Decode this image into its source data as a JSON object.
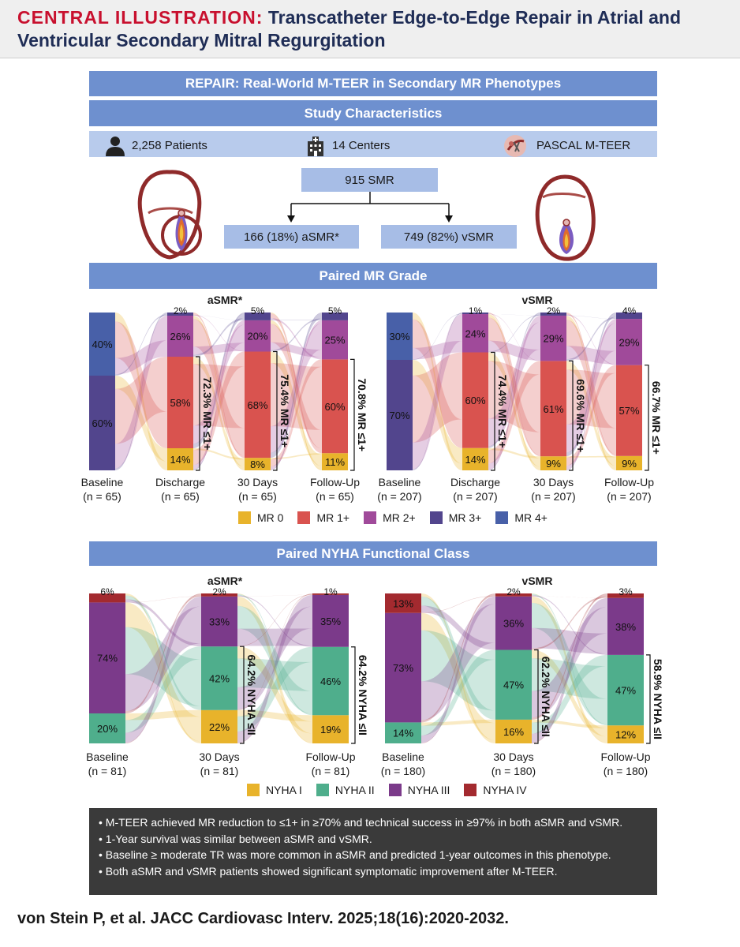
{
  "header": {
    "label": "CENTRAL ILLUSTRATION:",
    "title": "Transcatheter Edge-to-Edge Repair in Atrial and Ventricular Secondary Mitral Regurgitation"
  },
  "top_banner": "REPAIR: Real-World M-TEER in Secondary MR Phenotypes",
  "study_banner": "Study Characteristics",
  "stats": {
    "patients": "2,258 Patients",
    "centers": "14 Centers",
    "device": "PASCAL M-TEER"
  },
  "cohort": {
    "total": "915 SMR",
    "asmr": "166 (18%) aSMR*",
    "vsmr": "749 (82%) vSMR"
  },
  "mr_banner": "Paired MR Grade",
  "nyha_banner": "Paired NYHA Functional Class",
  "colors": {
    "mr0": "#e8b32b",
    "mr1": "#d9534f",
    "mr2": "#a04a9a",
    "mr3": "#52458d",
    "mr4": "#4860a8",
    "ny1": "#e8b32b",
    "ny2": "#4fae8c",
    "ny3": "#7b3a8a",
    "ny4": "#a32a2f"
  },
  "mr_legend": [
    "MR 0",
    "MR 1+",
    "MR 2+",
    "MR 3+",
    "MR 4+"
  ],
  "nyha_legend": [
    "NYHA I",
    "NYHA II",
    "NYHA III",
    "NYHA IV"
  ],
  "chart_data": [
    {
      "type": "sankey",
      "title": "aSMR*",
      "columns": [
        {
          "label": "Baseline",
          "n": "(n = 65)",
          "segments": [
            {
              "cat": "MR 3+",
              "pct": 60,
              "label": "60%"
            },
            {
              "cat": "MR 4+",
              "pct": 40,
              "label": "40%"
            }
          ]
        },
        {
          "label": "Discharge",
          "n": "(n = 65)",
          "segments": [
            {
              "cat": "MR 0",
              "pct": 14,
              "label": "14%"
            },
            {
              "cat": "MR 1+",
              "pct": 58,
              "label": "58%"
            },
            {
              "cat": "MR 2+",
              "pct": 26,
              "label": "26%"
            },
            {
              "cat": "MR 3+",
              "pct": 2,
              "label": "2%"
            }
          ],
          "bracket": "72.3% MR ≤1+"
        },
        {
          "label": "30 Days",
          "n": "(n = 65)",
          "segments": [
            {
              "cat": "MR 0",
              "pct": 8,
              "label": "8%"
            },
            {
              "cat": "MR 1+",
              "pct": 68,
              "label": "68%"
            },
            {
              "cat": "MR 2+",
              "pct": 20,
              "label": "20%"
            },
            {
              "cat": "MR 3+",
              "pct": 5,
              "label": "5%"
            }
          ],
          "bracket": "75.4% MR ≤1+"
        },
        {
          "label": "Follow-Up",
          "n": "(n = 65)",
          "segments": [
            {
              "cat": "MR 0",
              "pct": 11,
              "label": "11%"
            },
            {
              "cat": "MR 1+",
              "pct": 60,
              "label": "60%"
            },
            {
              "cat": "MR 2+",
              "pct": 25,
              "label": "25%"
            },
            {
              "cat": "MR 3+",
              "pct": 5,
              "label": "5%"
            }
          ],
          "bracket": "70.8% MR ≤1+"
        }
      ]
    },
    {
      "type": "sankey",
      "title": "vSMR",
      "columns": [
        {
          "label": "Baseline",
          "n": "(n = 207)",
          "segments": [
            {
              "cat": "MR 3+",
              "pct": 70,
              "label": "70%"
            },
            {
              "cat": "MR 4+",
              "pct": 30,
              "label": "30%"
            }
          ]
        },
        {
          "label": "Discharge",
          "n": "(n = 207)",
          "segments": [
            {
              "cat": "MR 0",
              "pct": 14,
              "label": "14%"
            },
            {
              "cat": "MR 1+",
              "pct": 60,
              "label": "60%"
            },
            {
              "cat": "MR 2+",
              "pct": 24,
              "label": "24%"
            },
            {
              "cat": "MR 3+",
              "pct": 1,
              "label": "1%"
            }
          ],
          "bracket": "74.4% MR ≤1+"
        },
        {
          "label": "30 Days",
          "n": "(n = 207)",
          "segments": [
            {
              "cat": "MR 0",
              "pct": 9,
              "label": "9%"
            },
            {
              "cat": "MR 1+",
              "pct": 61,
              "label": "61%"
            },
            {
              "cat": "MR 2+",
              "pct": 29,
              "label": "29%"
            },
            {
              "cat": "MR 3+",
              "pct": 2,
              "label": "2%"
            }
          ],
          "bracket": "69.6% MR ≤1+"
        },
        {
          "label": "Follow-Up",
          "n": "(n = 207)",
          "segments": [
            {
              "cat": "MR 0",
              "pct": 9,
              "label": "9%"
            },
            {
              "cat": "MR 1+",
              "pct": 57,
              "label": "57%"
            },
            {
              "cat": "MR 2+",
              "pct": 29,
              "label": "29%"
            },
            {
              "cat": "MR 3+",
              "pct": 4,
              "label": "4%"
            }
          ],
          "bracket": "66.7% MR ≤1+"
        }
      ]
    },
    {
      "type": "sankey",
      "title": "aSMR*",
      "columns": [
        {
          "label": "Baseline",
          "n": "(n = 81)",
          "segments": [
            {
              "cat": "NYHA II",
              "pct": 20,
              "label": "20%"
            },
            {
              "cat": "NYHA III",
              "pct": 74,
              "label": "74%"
            },
            {
              "cat": "NYHA IV",
              "pct": 6,
              "label": "6%"
            }
          ]
        },
        {
          "label": "30 Days",
          "n": "(n = 81)",
          "segments": [
            {
              "cat": "NYHA I",
              "pct": 22,
              "label": "22%"
            },
            {
              "cat": "NYHA II",
              "pct": 42,
              "label": "42%"
            },
            {
              "cat": "NYHA III",
              "pct": 33,
              "label": "33%"
            },
            {
              "cat": "NYHA IV",
              "pct": 2,
              "label": "2%"
            }
          ],
          "bracket": "64.2% NYHA ≤II"
        },
        {
          "label": "Follow-Up",
          "n": "(n = 81)",
          "segments": [
            {
              "cat": "NYHA I",
              "pct": 19,
              "label": "19%"
            },
            {
              "cat": "NYHA II",
              "pct": 46,
              "label": "46%"
            },
            {
              "cat": "NYHA III",
              "pct": 35,
              "label": "35%"
            },
            {
              "cat": "NYHA IV",
              "pct": 1,
              "label": "1%"
            }
          ],
          "bracket": "64.2% NYHA ≤II"
        }
      ]
    },
    {
      "type": "sankey",
      "title": "vSMR",
      "columns": [
        {
          "label": "Baseline",
          "n": "(n = 180)",
          "segments": [
            {
              "cat": "NYHA II",
              "pct": 14,
              "label": "14%"
            },
            {
              "cat": "NYHA III",
              "pct": 73,
              "label": "73%"
            },
            {
              "cat": "NYHA IV",
              "pct": 13,
              "label": "13%"
            }
          ]
        },
        {
          "label": "30 Days",
          "n": "(n = 180)",
          "segments": [
            {
              "cat": "NYHA I",
              "pct": 16,
              "label": "16%"
            },
            {
              "cat": "NYHA II",
              "pct": 47,
              "label": "47%"
            },
            {
              "cat": "NYHA III",
              "pct": 36,
              "label": "36%"
            },
            {
              "cat": "NYHA IV",
              "pct": 2,
              "label": "2%"
            }
          ],
          "bracket": "62.2% NYHA ≤II"
        },
        {
          "label": "Follow-Up",
          "n": "(n = 180)",
          "segments": [
            {
              "cat": "NYHA I",
              "pct": 12,
              "label": "12%"
            },
            {
              "cat": "NYHA II",
              "pct": 47,
              "label": "47%"
            },
            {
              "cat": "NYHA III",
              "pct": 38,
              "label": "38%"
            },
            {
              "cat": "NYHA IV",
              "pct": 3,
              "label": "3%"
            }
          ],
          "bracket": "58.9% NYHA ≤II"
        }
      ]
    }
  ],
  "summary": [
    "M-TEER achieved MR reduction to ≤1+ in ≥70% and technical success in ≥97% in both aSMR and vSMR.",
    "1-Year survival was similar between aSMR and vSMR.",
    "Baseline ≥ moderate TR was more common in aSMR and predicted 1-year outcomes in this phenotype.",
    "Both aSMR and vSMR patients showed significant symptomatic improvement after M-TEER."
  ],
  "citation": "von Stein P, et al. JACC Cardiovasc Interv. 2025;18(16):2020-2032."
}
